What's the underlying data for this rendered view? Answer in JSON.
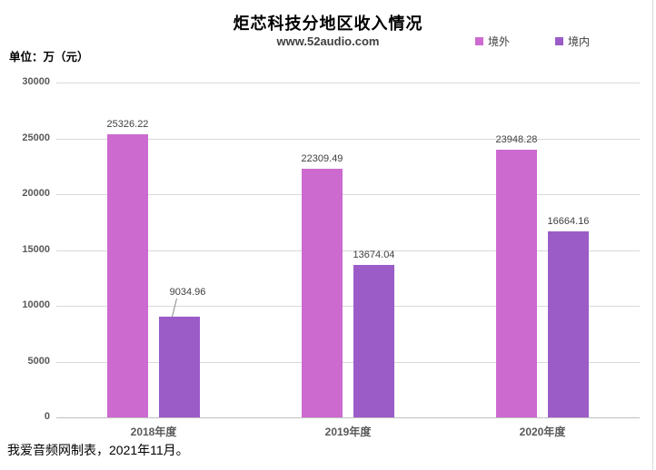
{
  "header": {
    "title": "炬芯科技分地区收入情况",
    "subtitle": "www.52audio.com"
  },
  "unit_label": "单位：万（元）",
  "footer": "我爱音频网制表，2021年11月。",
  "colors": {
    "series_overseas": "#cc6acf",
    "series_domestic": "#9b5cc8",
    "gridline": "#d9d9d9",
    "axis_line": "#bfbfbf",
    "tick_text": "#595959",
    "value_text": "#3f3f3f"
  },
  "chart_data": {
    "type": "bar",
    "title": "炬芯科技分地区收入情况",
    "subtitle": "www.52audio.com",
    "xlabel": "",
    "ylabel": "单位：万（元）",
    "categories": [
      "2018年度",
      "2019年度",
      "2020年度"
    ],
    "series": [
      {
        "key": "jingwai",
        "name": "境外",
        "color": "#cc6acf",
        "values": [
          25326.22,
          22309.49,
          23948.28
        ]
      },
      {
        "key": "jingnei",
        "name": "境内",
        "color": "#9b5cc8",
        "values": [
          9034.96,
          13674.04,
          16664.16
        ],
        "label_adjust": [
          {
            "index": 0,
            "dx": 9,
            "dy": -16,
            "leader": true
          }
        ]
      }
    ],
    "ylim": [
      0,
      30000
    ],
    "ytick_step": 5000,
    "grid": true,
    "legend_position": "top-right",
    "value_labels": true
  }
}
